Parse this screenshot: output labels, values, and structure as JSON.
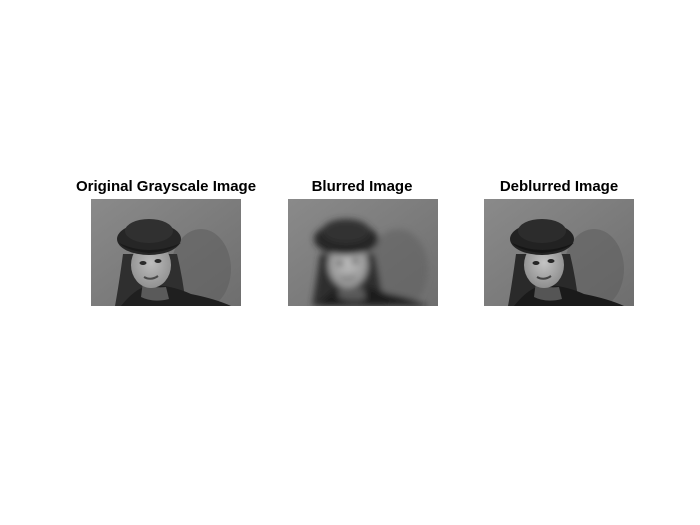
{
  "figure": {
    "panels": [
      {
        "title": "Original Grayscale Image"
      },
      {
        "title": "Blurred Image"
      },
      {
        "title": "Deblurred Image"
      }
    ]
  }
}
